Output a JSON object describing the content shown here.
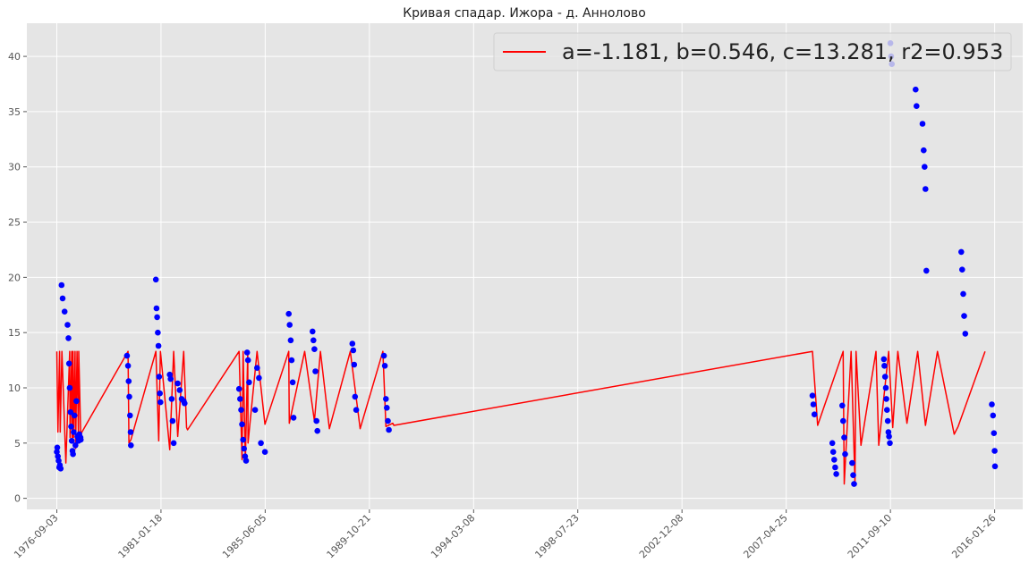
{
  "chart_data": {
    "type": "scatter",
    "title": "Кривая спадар. Ижора - д. Аннолово",
    "xlabel": "",
    "ylabel": "",
    "ylim": [
      -1,
      43
    ],
    "yticks": [
      0,
      5,
      10,
      15,
      20,
      25,
      30,
      35,
      40
    ],
    "x_is_date": true,
    "xlim": [
      "1975-06-01",
      "2017-04-01"
    ],
    "xticks": [
      "1976-09-03",
      "1981-01-18",
      "1985-06-05",
      "1989-10-21",
      "1994-03-08",
      "1998-07-23",
      "2002-12-08",
      "2007-04-25",
      "2011-09-10",
      "2016-01-26"
    ],
    "grid": true,
    "legend_position": "top-right",
    "colors": {
      "points": "#0000ff",
      "line": "#ff0000",
      "background": "#e5e5e5",
      "grid": "#ffffff"
    },
    "series": [
      {
        "name": "a=-1.181, b=0.546, c=13.281, r2=0.953",
        "kind": "line",
        "x": [
          "1976-09-03",
          "1976-09-20",
          "1976-10-15",
          "1976-10-25",
          "1976-11-20",
          "1977-01-20",
          "1977-03-20",
          "1977-03-25",
          "1977-04-20",
          "1977-04-25",
          "1977-05-10",
          "1977-05-18",
          "1977-06-10",
          "1977-06-18",
          "1977-07-10",
          "1977-08-01",
          "1977-08-05",
          "1977-09-05",
          "1979-09-01",
          "1979-09-15",
          "1979-10-15",
          "1980-11-01",
          "1980-12-15",
          "1981-01-10",
          "1981-06-01",
          "1981-08-01",
          "1981-10-01",
          "1982-01-01",
          "1982-02-15",
          "1982-03-01",
          "1984-05-01",
          "1984-06-15",
          "1984-07-01",
          "1984-08-05",
          "1984-09-10",
          "1984-09-15",
          "1985-02-01",
          "1985-06-01",
          "1986-06-01",
          "1986-06-10",
          "1987-02-01",
          "1987-07-01",
          "1987-10-01",
          "1988-02-15",
          "1989-01-01",
          "1989-06-01",
          "1990-05-15",
          "1990-07-01",
          "1990-10-15",
          "1990-11-01",
          "2008-06-01",
          "2008-08-20",
          "2009-09-15",
          "2009-10-01",
          "2010-01-15",
          "2010-03-15",
          "2010-04-01",
          "2010-06-15",
          "2011-02-01",
          "2011-03-15",
          "2011-08-15",
          "2011-10-15",
          "2012-01-01",
          "2012-05-20",
          "2012-11-01",
          "2013-03-01",
          "2013-09-01",
          "2014-05-15",
          "2014-07-15",
          "2015-09-01"
        ],
        "y": [
          13.3,
          6.0,
          13.3,
          6.0,
          13.3,
          3.2,
          13.3,
          5.5,
          13.3,
          5.0,
          13.3,
          5.5,
          13.3,
          4.5,
          13.3,
          5.5,
          13.3,
          5.8,
          13.3,
          5.0,
          5.3,
          13.3,
          5.2,
          13.3,
          4.4,
          13.3,
          5.6,
          13.3,
          6.4,
          6.2,
          13.3,
          3.5,
          13.3,
          3.3,
          13.3,
          5.0,
          13.3,
          6.7,
          13.3,
          6.8,
          13.3,
          7.0,
          13.3,
          6.3,
          13.3,
          6.3,
          13.3,
          6.5,
          6.8,
          6.6,
          13.3,
          6.6,
          13.3,
          1.3,
          13.3,
          1.5,
          13.3,
          4.8,
          13.3,
          4.8,
          13.3,
          6.4,
          13.3,
          6.8,
          13.3,
          6.6,
          13.3,
          5.8,
          6.5,
          13.3
        ]
      },
      {
        "name": "",
        "kind": "points",
        "x": [
          "1976-09-03",
          "1976-09-10",
          "1976-09-20",
          "1976-10-01",
          "1976-10-10",
          "1976-10-20",
          "1976-11-01",
          "1976-11-15",
          "1976-12-01",
          "1977-01-01",
          "1977-02-15",
          "1977-03-01",
          "1977-03-10",
          "1977-03-20",
          "1977-04-01",
          "1977-04-10",
          "1977-04-20",
          "1977-05-01",
          "1977-05-10",
          "1977-05-20",
          "1977-06-01",
          "1977-06-15",
          "1977-07-01",
          "1977-07-15",
          "1977-08-01",
          "1977-08-15",
          "1977-09-01",
          "1977-09-05",
          "1979-08-15",
          "1979-09-01",
          "1979-09-10",
          "1979-09-20",
          "1979-10-01",
          "1979-10-10",
          "1979-10-15",
          "1980-11-01",
          "1980-11-10",
          "1980-11-20",
          "1980-12-01",
          "1980-12-10",
          "1980-12-20",
          "1981-01-01",
          "1981-01-10",
          "1981-06-01",
          "1981-06-15",
          "1981-07-01",
          "1981-07-15",
          "1981-08-01",
          "1981-10-01",
          "1981-11-01",
          "1981-12-01",
          "1982-01-01",
          "1982-01-15",
          "1984-05-01",
          "1984-05-15",
          "1984-06-01",
          "1984-06-15",
          "1984-07-01",
          "1984-07-15",
          "1984-08-01",
          "1984-08-15",
          "1984-09-01",
          "1984-09-15",
          "1984-10-01",
          "1985-01-01",
          "1985-02-01",
          "1985-03-01",
          "1985-04-01",
          "1985-06-01",
          "1986-06-01",
          "1986-06-15",
          "1986-07-01",
          "1986-07-15",
          "1986-08-01",
          "1986-08-15",
          "1987-06-01",
          "1987-06-15",
          "1987-07-01",
          "1987-07-15",
          "1987-08-01",
          "1987-08-15",
          "1989-02-01",
          "1989-02-15",
          "1989-03-01",
          "1989-03-15",
          "1989-04-01",
          "1990-06-01",
          "1990-06-15",
          "1990-07-01",
          "1990-07-15",
          "1990-08-01",
          "1990-08-15",
          "2008-06-01",
          "2008-06-15",
          "2008-07-01",
          "2009-04-01",
          "2009-04-15",
          "2009-05-01",
          "2009-05-15",
          "2009-06-01",
          "2009-09-01",
          "2009-09-15",
          "2009-10-01",
          "2009-10-15",
          "2010-02-01",
          "2010-02-15",
          "2010-03-01",
          "2011-06-01",
          "2011-06-10",
          "2011-06-20",
          "2011-07-01",
          "2011-07-10",
          "2011-07-20",
          "2011-08-01",
          "2011-08-10",
          "2011-08-20",
          "2011-09-01",
          "2011-09-10",
          "2011-09-20",
          "2011-10-01",
          "2012-10-01",
          "2012-10-15",
          "2013-01-15",
          "2013-02-01",
          "2013-02-15",
          "2013-03-01",
          "2013-03-15",
          "2014-09-01",
          "2014-09-15",
          "2014-10-01",
          "2014-10-15",
          "2014-11-01",
          "2015-12-15",
          "2016-01-01",
          "2016-01-15",
          "2016-01-26",
          "2016-02-01"
        ],
        "y": [
          4.2,
          4.6,
          3.8,
          3.4,
          2.8,
          3.0,
          2.7,
          19.3,
          18.1,
          16.9,
          15.7,
          14.5,
          12.2,
          10.0,
          7.8,
          6.5,
          5.2,
          4.3,
          4.0,
          6.0,
          7.5,
          4.8,
          8.8,
          5.6,
          5.2,
          5.8,
          5.5,
          5.3,
          12.9,
          12.0,
          10.6,
          9.2,
          7.5,
          6.0,
          4.8,
          19.8,
          17.2,
          16.4,
          15.0,
          13.8,
          11.0,
          9.5,
          8.7,
          11.2,
          10.8,
          9.0,
          7.0,
          5.0,
          10.4,
          9.8,
          9.0,
          8.8,
          8.6,
          9.9,
          9.0,
          8.0,
          6.7,
          5.3,
          4.5,
          3.8,
          3.4,
          13.2,
          12.5,
          10.5,
          8.0,
          11.8,
          10.9,
          5.0,
          4.2,
          16.7,
          15.7,
          14.3,
          12.5,
          10.5,
          7.3,
          15.1,
          14.3,
          13.5,
          11.5,
          7.0,
          6.1,
          14.0,
          13.4,
          12.1,
          9.2,
          8.0,
          12.9,
          12.0,
          9.0,
          8.2,
          7.0,
          6.2,
          9.3,
          8.5,
          7.6,
          5.0,
          4.2,
          3.5,
          2.8,
          2.2,
          8.4,
          7.0,
          5.5,
          4.0,
          3.2,
          2.1,
          1.3,
          12.6,
          12.0,
          11.0,
          10.0,
          9.0,
          8.0,
          7.0,
          6.0,
          5.6,
          5.0,
          41.2,
          40.0,
          39.3,
          37.0,
          35.5,
          33.9,
          31.5,
          30.0,
          28.0,
          20.6,
          22.3,
          20.7,
          18.5,
          16.5,
          14.9,
          8.5,
          7.5,
          5.9,
          4.3,
          2.9
        ]
      }
    ]
  }
}
